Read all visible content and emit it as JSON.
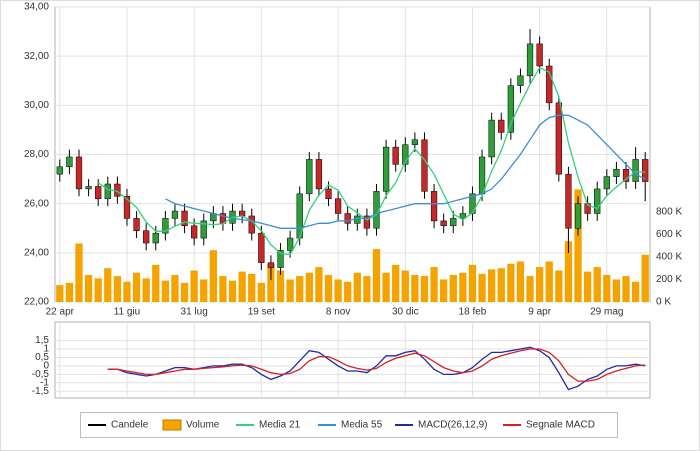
{
  "chart_data": [
    {
      "type": "candlestick",
      "categories": [
        "22 apr",
        null,
        null,
        null,
        null,
        null,
        null,
        "11 giu",
        null,
        null,
        null,
        null,
        null,
        null,
        "31 lug",
        null,
        null,
        null,
        null,
        null,
        null,
        "19 set",
        null,
        null,
        null,
        null,
        null,
        null,
        null,
        "8 nov",
        null,
        null,
        null,
        null,
        null,
        null,
        "30 dic",
        null,
        null,
        null,
        null,
        null,
        null,
        "18 feb",
        null,
        null,
        null,
        null,
        null,
        null,
        "9 apr",
        null,
        null,
        null,
        null,
        null,
        null,
        "29 mag",
        null,
        null,
        null,
        null
      ],
      "candles": {
        "name": "Candele",
        "color": "#000000",
        "up_color": "#2e9e3a",
        "down_color": "#c62828",
        "open": [
          27.2,
          27.5,
          27.9,
          26.6,
          26.7,
          26.2,
          26.8,
          26.3,
          25.4,
          24.9,
          24.4,
          24.8,
          25.4,
          25.7,
          25.1,
          24.6,
          25.3,
          25.6,
          25.2,
          25.7,
          25.5,
          24.8,
          23.6,
          23.4,
          24.1,
          24.6,
          26.4,
          27.8,
          26.6,
          26.2,
          25.6,
          25.2,
          25.5,
          25.0,
          26.5,
          28.3,
          27.6,
          28.4,
          28.6,
          26.5,
          25.3,
          25.1,
          25.4,
          25.6,
          26.4,
          27.9,
          29.4,
          28.9,
          30.8,
          31.2,
          32.5,
          31.6,
          30.1,
          27.2,
          25.0,
          26.0,
          25.6,
          26.6,
          27.1,
          27.4,
          26.9,
          27.8
        ],
        "high": [
          27.8,
          28.2,
          28.2,
          27.0,
          27.0,
          27.1,
          27.1,
          26.6,
          25.7,
          25.2,
          25.1,
          25.7,
          26.0,
          26.0,
          25.4,
          25.6,
          25.9,
          25.9,
          26.0,
          26.0,
          25.8,
          25.1,
          23.9,
          24.4,
          24.9,
          26.7,
          28.1,
          28.1,
          26.9,
          26.5,
          25.9,
          25.8,
          25.8,
          26.8,
          28.6,
          28.6,
          28.7,
          28.9,
          28.9,
          26.8,
          25.6,
          25.7,
          25.9,
          26.7,
          28.2,
          29.7,
          29.7,
          31.1,
          31.5,
          33.1,
          32.8,
          31.9,
          30.4,
          27.5,
          26.3,
          26.3,
          26.9,
          27.4,
          27.7,
          27.7,
          28.3,
          28.1
        ],
        "low": [
          26.9,
          27.2,
          26.3,
          26.3,
          25.9,
          25.9,
          26.0,
          25.1,
          24.6,
          24.1,
          24.1,
          24.5,
          25.1,
          24.8,
          24.3,
          24.3,
          25.0,
          24.9,
          24.9,
          25.2,
          24.5,
          23.3,
          22.9,
          23.1,
          23.8,
          24.3,
          26.1,
          26.3,
          25.9,
          25.3,
          24.9,
          24.9,
          24.7,
          24.7,
          26.2,
          27.3,
          27.3,
          28.1,
          26.2,
          25.0,
          24.8,
          24.8,
          25.1,
          25.3,
          26.1,
          27.6,
          28.6,
          28.6,
          30.5,
          30.9,
          31.3,
          29.8,
          26.9,
          24.0,
          24.7,
          25.3,
          25.3,
          26.3,
          26.8,
          26.6,
          26.6,
          26.1
        ],
        "close": [
          27.5,
          27.9,
          26.6,
          26.7,
          26.2,
          26.8,
          26.3,
          25.4,
          24.9,
          24.4,
          24.8,
          25.4,
          25.7,
          25.1,
          24.6,
          25.3,
          25.6,
          25.2,
          25.7,
          25.5,
          24.8,
          23.6,
          23.4,
          24.1,
          24.6,
          26.4,
          27.8,
          26.6,
          26.2,
          25.6,
          25.2,
          25.5,
          25.0,
          26.5,
          28.3,
          27.6,
          28.4,
          28.6,
          26.5,
          25.3,
          25.1,
          25.4,
          25.6,
          26.4,
          27.9,
          29.4,
          28.9,
          30.8,
          31.2,
          32.5,
          31.6,
          30.1,
          27.2,
          25.0,
          26.0,
          25.6,
          26.6,
          27.1,
          27.4,
          26.9,
          27.8,
          26.9
        ]
      },
      "series": [
        {
          "name": "Volume",
          "type": "bar",
          "axis": "y2",
          "color": "#f5a300",
          "values": [
            150000,
            170000,
            520000,
            240000,
            210000,
            300000,
            230000,
            180000,
            260000,
            210000,
            330000,
            190000,
            240000,
            170000,
            280000,
            200000,
            460000,
            230000,
            190000,
            270000,
            250000,
            170000,
            340000,
            280000,
            200000,
            230000,
            260000,
            310000,
            240000,
            200000,
            180000,
            260000,
            230000,
            470000,
            260000,
            330000,
            280000,
            240000,
            230000,
            310000,
            200000,
            240000,
            260000,
            330000,
            250000,
            290000,
            300000,
            340000,
            360000,
            230000,
            310000,
            360000,
            280000,
            540000,
            1000000,
            270000,
            310000,
            240000,
            200000,
            230000,
            180000,
            420000
          ]
        },
        {
          "name": "Media 21",
          "type": "line",
          "color": "#33d17a",
          "values": [
            null,
            null,
            null,
            null,
            26.85,
            26.58,
            26.5,
            26.18,
            25.85,
            25.25,
            24.88,
            24.88,
            25.08,
            25.25,
            25.2,
            25.18,
            25.15,
            25.18,
            25.45,
            25.5,
            25.3,
            24.9,
            24.33,
            23.98,
            23.93,
            24.63,
            25.73,
            26.35,
            26.75,
            26.55,
            25.9,
            25.63,
            25.33,
            25.55,
            26.33,
            26.85,
            27.7,
            28.23,
            27.78,
            27.2,
            26.38,
            25.58,
            25.35,
            25.63,
            26.33,
            27.33,
            28.15,
            29.25,
            30.08,
            30.85,
            31.53,
            31.35,
            30.35,
            28.48,
            27.08,
            25.95,
            25.8,
            26.33,
            26.68,
            27.0,
            27.3,
            27.28
          ]
        },
        {
          "name": "Media 55",
          "type": "line",
          "color": "#3a8fd9",
          "values": [
            null,
            null,
            null,
            null,
            null,
            null,
            null,
            null,
            null,
            null,
            null,
            26.2,
            26.0,
            25.9,
            25.8,
            25.7,
            25.6,
            25.5,
            25.4,
            25.35,
            25.3,
            25.2,
            25.1,
            25.0,
            25.0,
            25.0,
            25.1,
            25.2,
            25.2,
            25.3,
            25.3,
            25.4,
            25.4,
            25.6,
            25.7,
            25.8,
            25.9,
            26.0,
            26.0,
            26.0,
            26.0,
            26.1,
            26.2,
            26.3,
            26.4,
            26.6,
            27.0,
            27.5,
            28.0,
            28.6,
            29.2,
            29.5,
            29.6,
            29.6,
            29.4,
            29.2,
            28.8,
            28.4,
            28.0,
            27.6,
            27.2,
            27.0
          ]
        }
      ],
      "ylim": [
        22,
        34
      ],
      "yticks": [
        {
          "value": 22,
          "label": "22,00"
        },
        {
          "value": 24,
          "label": "24,00"
        },
        {
          "value": 26,
          "label": "26,00"
        },
        {
          "value": 28,
          "label": "28,00"
        },
        {
          "value": 30,
          "label": "30,00"
        },
        {
          "value": 32,
          "label": "32,00"
        },
        {
          "value": 34,
          "label": "34,00"
        }
      ],
      "y2lim": [
        0,
        2620000
      ],
      "y2ticks": [
        {
          "value": 0,
          "label": "0 K"
        },
        {
          "value": 200000,
          "label": "200 K"
        },
        {
          "value": 400000,
          "label": "400 K"
        },
        {
          "value": 600000,
          "label": "600 K"
        },
        {
          "value": 800000,
          "label": "800 K"
        }
      ],
      "grid": true
    },
    {
      "type": "line",
      "series": [
        {
          "name": "MACD(26,12,9)",
          "color": "#1f2aa8",
          "values": [
            null,
            null,
            null,
            null,
            null,
            -0.2,
            -0.2,
            -0.4,
            -0.5,
            -0.6,
            -0.5,
            -0.3,
            -0.1,
            -0.1,
            -0.2,
            -0.1,
            0.0,
            0.0,
            0.1,
            0.1,
            -0.1,
            -0.5,
            -0.8,
            -0.6,
            -0.3,
            0.3,
            0.9,
            0.8,
            0.4,
            0.0,
            -0.3,
            -0.3,
            -0.4,
            0.0,
            0.6,
            0.6,
            0.8,
            0.9,
            0.4,
            -0.2,
            -0.5,
            -0.5,
            -0.4,
            -0.1,
            0.4,
            0.8,
            0.8,
            0.9,
            1.0,
            1.1,
            0.9,
            0.5,
            -0.4,
            -1.4,
            -1.2,
            -0.8,
            -0.6,
            -0.2,
            0.0,
            0.0,
            0.1,
            0.0
          ]
        },
        {
          "name": "Segnale MACD",
          "color": "#d62020",
          "values": [
            null,
            null,
            null,
            null,
            null,
            -0.2,
            -0.2,
            -0.3,
            -0.4,
            -0.5,
            -0.5,
            -0.4,
            -0.3,
            -0.2,
            -0.2,
            -0.15,
            -0.1,
            -0.05,
            0.0,
            0.05,
            0.0,
            -0.2,
            -0.4,
            -0.5,
            -0.45,
            -0.2,
            0.3,
            0.55,
            0.55,
            0.3,
            0.0,
            -0.15,
            -0.25,
            -0.15,
            0.2,
            0.45,
            0.6,
            0.75,
            0.6,
            0.25,
            -0.1,
            -0.3,
            -0.4,
            -0.3,
            0.0,
            0.4,
            0.6,
            0.75,
            0.9,
            1.0,
            1.0,
            0.8,
            0.3,
            -0.5,
            -0.9,
            -0.9,
            -0.8,
            -0.5,
            -0.3,
            -0.15,
            0.0,
            0.05
          ]
        }
      ],
      "ylim": [
        -1.9,
        2.6
      ],
      "yticks": [
        {
          "value": 1.5,
          "label": "1,5"
        },
        1,
        {
          "value": 0.5,
          "label": "0,5"
        },
        0,
        {
          "value": -0.5,
          "label": "-0,5"
        },
        -1,
        {
          "value": -1.5,
          "label": "-1,5"
        }
      ],
      "grid": true
    }
  ]
}
